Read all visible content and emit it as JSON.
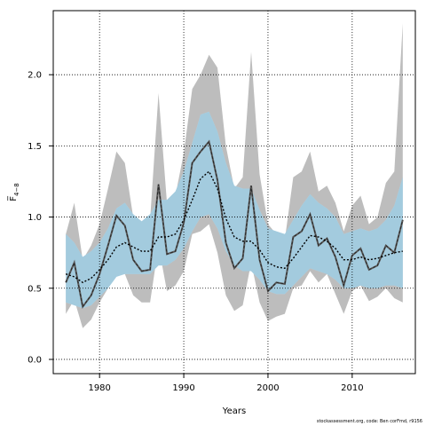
{
  "chart_data": {
    "type": "line",
    "xlabel": "Years",
    "ylabel": "F̅",
    "ylabel_sub": "4−8",
    "xlim": [
      1974.5,
      2017.5
    ],
    "ylim": [
      -0.1,
      2.45
    ],
    "x_ticks": [
      1980,
      1990,
      2000,
      2010
    ],
    "y_ticks": [
      0.0,
      0.5,
      1.0,
      1.5,
      2.0
    ],
    "y_tick_labels": [
      "0.0",
      "0.5",
      "1.0",
      "1.5",
      "2.0"
    ],
    "grid": true,
    "colors": {
      "outer_band": "#bdbdbd",
      "inner_band": "#9cc6d9",
      "light_band": "#c8e6f7",
      "solid_line": "#5a5a5a",
      "mean_line": "#000000"
    },
    "years": [
      1976,
      1977,
      1978,
      1979,
      1980,
      1981,
      1982,
      1983,
      1984,
      1985,
      1986,
      1987,
      1988,
      1989,
      1990,
      1991,
      1992,
      1993,
      1994,
      1995,
      1996,
      1997,
      1998,
      1999,
      2000,
      2001,
      2002,
      2003,
      2004,
      2005,
      2006,
      2007,
      2008,
      2009,
      2010,
      2011,
      2012,
      2013,
      2014,
      2015,
      2016
    ],
    "series": [
      {
        "role": "estimate",
        "values": [
          0.54,
          0.68,
          0.37,
          0.45,
          0.6,
          0.8,
          1.01,
          0.94,
          0.7,
          0.62,
          0.63,
          1.23,
          0.74,
          0.76,
          0.96,
          1.38,
          1.46,
          1.53,
          1.26,
          0.82,
          0.64,
          0.71,
          1.22,
          0.7,
          0.48,
          0.54,
          0.53,
          0.86,
          0.9,
          1.02,
          0.8,
          0.85,
          0.72,
          0.52,
          0.73,
          0.78,
          0.63,
          0.66,
          0.8,
          0.75,
          0.98
        ]
      },
      {
        "role": "smoothed",
        "values": [
          0.6,
          0.58,
          0.54,
          0.57,
          0.63,
          0.7,
          0.79,
          0.82,
          0.79,
          0.76,
          0.76,
          0.86,
          0.86,
          0.88,
          0.98,
          1.12,
          1.27,
          1.32,
          1.2,
          0.99,
          0.86,
          0.83,
          0.83,
          0.77,
          0.68,
          0.65,
          0.64,
          0.71,
          0.79,
          0.87,
          0.86,
          0.83,
          0.78,
          0.7,
          0.7,
          0.72,
          0.7,
          0.71,
          0.73,
          0.75,
          0.76
        ]
      }
    ],
    "outer_band": {
      "upper": [
        0.88,
        1.1,
        0.7,
        0.8,
        0.95,
        1.2,
        1.46,
        1.38,
        1.0,
        0.95,
        0.98,
        1.87,
        1.1,
        1.15,
        1.45,
        1.9,
        2.0,
        2.14,
        2.05,
        1.5,
        1.2,
        1.28,
        2.16,
        1.3,
        0.95,
        0.88,
        0.84,
        1.28,
        1.32,
        1.46,
        1.18,
        1.22,
        1.1,
        0.9,
        1.08,
        1.15,
        0.95,
        1.0,
        1.24,
        1.32,
        2.36
      ],
      "lower": [
        0.32,
        0.42,
        0.22,
        0.28,
        0.4,
        0.5,
        0.62,
        0.6,
        0.45,
        0.4,
        0.4,
        0.8,
        0.48,
        0.52,
        0.62,
        0.88,
        0.9,
        0.95,
        0.75,
        0.45,
        0.34,
        0.38,
        0.68,
        0.4,
        0.27,
        0.3,
        0.32,
        0.5,
        0.52,
        0.62,
        0.54,
        0.6,
        0.46,
        0.32,
        0.48,
        0.52,
        0.41,
        0.44,
        0.5,
        0.43,
        0.4
      ]
    },
    "inner_band": {
      "upper": [
        0.88,
        0.82,
        0.72,
        0.76,
        0.82,
        0.92,
        1.06,
        1.1,
        1.02,
        0.97,
        1.02,
        1.12,
        1.12,
        1.18,
        1.32,
        1.52,
        1.72,
        1.74,
        1.6,
        1.38,
        1.22,
        1.2,
        1.2,
        1.05,
        0.92,
        0.9,
        0.88,
        0.98,
        1.08,
        1.16,
        1.1,
        1.06,
        1.0,
        0.88,
        0.9,
        0.92,
        0.9,
        0.92,
        0.98,
        1.08,
        1.28
      ]
    },
    "inner_band_lower": [
      0.4,
      0.38,
      0.36,
      0.38,
      0.44,
      0.5,
      0.58,
      0.6,
      0.6,
      0.6,
      0.6,
      0.66,
      0.66,
      0.7,
      0.78,
      0.9,
      1.0,
      1.02,
      0.92,
      0.76,
      0.66,
      0.62,
      0.62,
      0.56,
      0.48,
      0.46,
      0.46,
      0.52,
      0.58,
      0.64,
      0.62,
      0.6,
      0.56,
      0.5,
      0.5,
      0.52,
      0.5,
      0.5,
      0.52,
      0.52,
      0.5
    ]
  },
  "footer": {
    "credit": "stockassessment.org, code: Ben corFmd, r9156"
  }
}
